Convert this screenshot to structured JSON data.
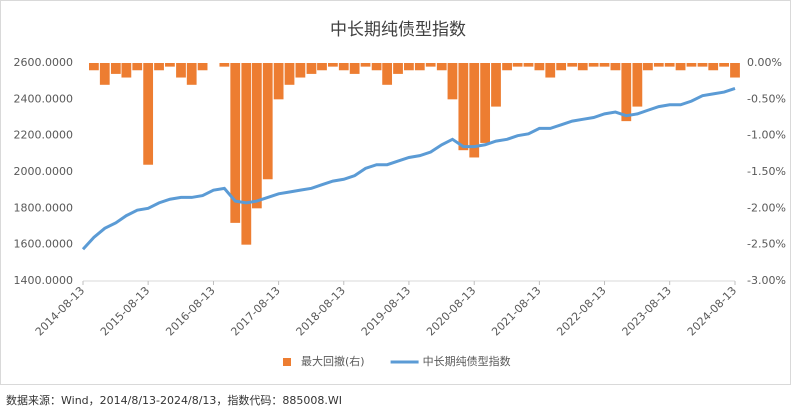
{
  "chart_data": {
    "type": "bar-line",
    "title": "中长期纯债型指数",
    "x": [
      "2014-08-13",
      "2014-10-13",
      "2014-12-13",
      "2015-02-13",
      "2015-04-13",
      "2015-06-13",
      "2015-08-13",
      "2015-10-13",
      "2015-12-13",
      "2016-02-13",
      "2016-04-13",
      "2016-06-13",
      "2016-08-13",
      "2016-10-13",
      "2016-12-13",
      "2017-02-13",
      "2017-04-13",
      "2017-06-13",
      "2017-08-13",
      "2017-10-13",
      "2017-12-13",
      "2018-02-13",
      "2018-04-13",
      "2018-06-13",
      "2018-08-13",
      "2018-10-13",
      "2018-12-13",
      "2019-02-13",
      "2019-04-13",
      "2019-06-13",
      "2019-08-13",
      "2019-10-13",
      "2019-12-13",
      "2020-02-13",
      "2020-04-13",
      "2020-06-13",
      "2020-08-13",
      "2020-10-13",
      "2020-12-13",
      "2021-02-13",
      "2021-04-13",
      "2021-06-13",
      "2021-08-13",
      "2021-10-13",
      "2021-12-13",
      "2022-02-13",
      "2022-04-13",
      "2022-06-13",
      "2022-08-13",
      "2022-10-13",
      "2022-12-13",
      "2023-02-13",
      "2023-04-13",
      "2023-06-13",
      "2023-08-13",
      "2023-10-13",
      "2023-12-13",
      "2024-02-13",
      "2024-04-13",
      "2024-06-13",
      "2024-08-13"
    ],
    "series": [
      {
        "name": "最大回撤(右)",
        "color": "#ed7d31",
        "axis": "y2",
        "kind": "bar",
        "values": [
          0,
          -0.1,
          -0.3,
          -0.15,
          -0.2,
          -0.1,
          -1.4,
          -0.1,
          -0.05,
          -0.2,
          -0.3,
          -0.1,
          0,
          -0.05,
          -2.2,
          -2.5,
          -2.0,
          -1.6,
          -0.5,
          -0.3,
          -0.2,
          -0.15,
          -0.1,
          -0.05,
          -0.1,
          -0.15,
          -0.05,
          -0.1,
          -0.3,
          -0.15,
          -0.1,
          -0.1,
          -0.05,
          -0.1,
          -0.5,
          -1.2,
          -1.3,
          -1.1,
          -0.6,
          -0.1,
          -0.05,
          -0.05,
          -0.1,
          -0.2,
          -0.1,
          -0.05,
          -0.1,
          -0.05,
          -0.05,
          -0.1,
          -0.8,
          -0.6,
          -0.1,
          -0.05,
          -0.05,
          -0.1,
          -0.05,
          -0.05,
          -0.1,
          -0.05,
          -0.2
        ]
      },
      {
        "name": "中长期纯债型指数",
        "color": "#5b9bd5",
        "kind": "line",
        "values": [
          1575,
          1640,
          1690,
          1720,
          1760,
          1790,
          1800,
          1830,
          1850,
          1860,
          1860,
          1870,
          1900,
          1910,
          1840,
          1830,
          1840,
          1860,
          1880,
          1890,
          1900,
          1910,
          1930,
          1950,
          1960,
          1980,
          2020,
          2040,
          2040,
          2060,
          2080,
          2090,
          2110,
          2150,
          2180,
          2140,
          2140,
          2150,
          2170,
          2180,
          2200,
          2210,
          2240,
          2240,
          2260,
          2280,
          2290,
          2300,
          2320,
          2330,
          2310,
          2320,
          2340,
          2360,
          2370,
          2370,
          2390,
          2420,
          2430,
          2440,
          2460
        ]
      }
    ],
    "xlim": [
      "2014-08-13",
      "2024-08-13"
    ],
    "xticks": [
      "2014-08-13",
      "2015-08-13",
      "2016-08-13",
      "2017-08-13",
      "2018-08-13",
      "2019-08-13",
      "2020-08-13",
      "2021-08-13",
      "2022-08-13",
      "2023-08-13",
      "2024-08-13"
    ],
    "ylim": [
      1400,
      2600
    ],
    "yticks": [
      {
        "value": 1400,
        "label": "1400.0000"
      },
      {
        "value": 1600,
        "label": "1600.0000"
      },
      {
        "value": 1800,
        "label": "1800.0000"
      },
      {
        "value": 2000,
        "label": "2000.0000"
      },
      {
        "value": 2200,
        "label": "2200.0000"
      },
      {
        "value": 2400,
        "label": "2400.0000"
      },
      {
        "value": 2600,
        "label": "2600.0000"
      }
    ],
    "y2lim": [
      -3,
      0
    ],
    "y2ticks": [
      {
        "value": -3,
        "label": "-3.00%"
      },
      {
        "value": -2.5,
        "label": "-2.50%"
      },
      {
        "value": -2,
        "label": "-2.00%"
      },
      {
        "value": -1.5,
        "label": "-1.50%"
      },
      {
        "value": -1,
        "label": "-1.00%"
      },
      {
        "value": -0.5,
        "label": "-0.50%"
      },
      {
        "value": 0,
        "label": "0.00%"
      }
    ],
    "grid": false,
    "legend": "bottom"
  },
  "footer": "数据来源：Wind，2014/8/13-2024/8/13，指数代码：885008.WI"
}
